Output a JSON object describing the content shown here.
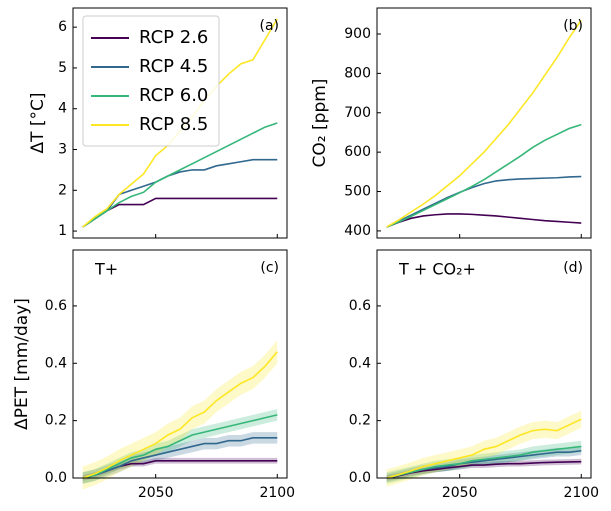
{
  "chart_data": [
    {
      "type": "line",
      "annotation": "(a)",
      "ylabel": "ΔT [°C]",
      "legend": "upper left",
      "x": [
        2020,
        2025,
        2030,
        2035,
        2040,
        2045,
        2050,
        2055,
        2060,
        2065,
        2070,
        2075,
        2080,
        2085,
        2090,
        2095,
        2100
      ],
      "xlim": [
        2016,
        2104
      ],
      "xticks": [
        2050,
        2100
      ],
      "xtick_labels": false,
      "ylim": [
        0.83,
        6.47
      ],
      "yticks": [
        1,
        2,
        3,
        4,
        5,
        6
      ],
      "series": [
        {
          "name": "RCP 2.6",
          "color": "#440154",
          "values": [
            1.1,
            1.3,
            1.5,
            1.65,
            1.65,
            1.65,
            1.8,
            1.8,
            1.8,
            1.8,
            1.8,
            1.8,
            1.8,
            1.8,
            1.8,
            1.8,
            1.8
          ]
        },
        {
          "name": "RCP 4.5",
          "color": "#31688e",
          "values": [
            1.1,
            1.3,
            1.5,
            1.9,
            2.0,
            2.1,
            2.2,
            2.35,
            2.45,
            2.5,
            2.5,
            2.6,
            2.65,
            2.7,
            2.75,
            2.75,
            2.75
          ]
        },
        {
          "name": "RCP 6.0",
          "color": "#35b779",
          "values": [
            1.1,
            1.3,
            1.5,
            1.7,
            1.85,
            1.95,
            2.2,
            2.35,
            2.5,
            2.65,
            2.8,
            2.95,
            3.1,
            3.25,
            3.4,
            3.55,
            3.65
          ]
        },
        {
          "name": "RCP 8.5",
          "color": "#fde725",
          "values": [
            1.1,
            1.35,
            1.55,
            1.9,
            2.15,
            2.4,
            2.85,
            3.1,
            3.45,
            3.8,
            4.2,
            4.55,
            4.85,
            5.1,
            5.2,
            5.7,
            6.2
          ]
        }
      ]
    },
    {
      "type": "line",
      "annotation": "(b)",
      "ylabel": "CO₂ [ppm]",
      "x": [
        2020,
        2025,
        2030,
        2035,
        2040,
        2045,
        2050,
        2055,
        2060,
        2065,
        2070,
        2075,
        2080,
        2085,
        2090,
        2095,
        2100
      ],
      "xlim": [
        2016,
        2104
      ],
      "xticks": [
        2050,
        2100
      ],
      "xtick_labels": false,
      "ylim": [
        382,
        966
      ],
      "yticks": [
        400,
        500,
        600,
        700,
        800,
        900
      ],
      "series": [
        {
          "color": "#440154",
          "values": [
            410,
            422,
            432,
            438,
            441,
            443,
            443,
            442,
            440,
            438,
            435,
            432,
            429,
            426,
            424,
            422,
            420
          ]
        },
        {
          "color": "#31688e",
          "values": [
            410,
            425,
            440,
            455,
            470,
            485,
            498,
            510,
            520,
            527,
            530,
            532,
            533,
            534,
            535,
            537,
            538
          ]
        },
        {
          "color": "#35b779",
          "values": [
            410,
            423,
            437,
            452,
            467,
            482,
            497,
            513,
            530,
            550,
            570,
            590,
            612,
            630,
            645,
            660,
            670
          ]
        },
        {
          "color": "#fde725",
          "values": [
            410,
            428,
            448,
            468,
            490,
            515,
            540,
            570,
            600,
            635,
            670,
            710,
            750,
            795,
            840,
            890,
            935
          ]
        }
      ]
    },
    {
      "type": "line",
      "annotation": "(c)",
      "title": "T+",
      "ylabel": "ΔPET [mm/day]",
      "x": [
        2020,
        2025,
        2030,
        2035,
        2040,
        2045,
        2050,
        2055,
        2060,
        2065,
        2070,
        2075,
        2080,
        2085,
        2090,
        2095,
        2100
      ],
      "xlim": [
        2016,
        2104
      ],
      "xticks": [
        2050,
        2100
      ],
      "ylim": [
        0,
        0.795
      ],
      "yticks": [
        {
          "value": 0,
          "label": "0.0"
        },
        0.2,
        0.4,
        0.6
      ],
      "series": [
        {
          "color": "#440154",
          "band": 0.01,
          "values": [
            0,
            0.01,
            0.025,
            0.04,
            0.05,
            0.05,
            0.06,
            0.06,
            0.06,
            0.06,
            0.06,
            0.06,
            0.06,
            0.06,
            0.06,
            0.06,
            0.06
          ]
        },
        {
          "color": "#31688e",
          "band": 0.02,
          "values": [
            0,
            0.01,
            0.025,
            0.04,
            0.06,
            0.07,
            0.08,
            0.09,
            0.1,
            0.11,
            0.12,
            0.12,
            0.13,
            0.13,
            0.14,
            0.14,
            0.14
          ]
        },
        {
          "color": "#35b779",
          "band": 0.02,
          "values": [
            0,
            0.01,
            0.03,
            0.05,
            0.07,
            0.08,
            0.1,
            0.11,
            0.13,
            0.15,
            0.16,
            0.17,
            0.18,
            0.19,
            0.2,
            0.21,
            0.22
          ]
        },
        {
          "color": "#fde725",
          "band": 0.04,
          "values": [
            0,
            0.015,
            0.035,
            0.06,
            0.08,
            0.1,
            0.12,
            0.15,
            0.17,
            0.21,
            0.23,
            0.27,
            0.3,
            0.33,
            0.35,
            0.39,
            0.44
          ]
        }
      ]
    },
    {
      "type": "line",
      "annotation": "(d)",
      "title": "T + CO₂+",
      "x": [
        2020,
        2025,
        2030,
        2035,
        2040,
        2045,
        2050,
        2055,
        2060,
        2065,
        2070,
        2075,
        2080,
        2085,
        2090,
        2095,
        2100
      ],
      "xlim": [
        2016,
        2104
      ],
      "xticks": [
        2050,
        2100
      ],
      "ylim": [
        0,
        0.795
      ],
      "yticks": [
        {
          "value": 0,
          "label": "0.0"
        },
        0.2,
        0.4,
        0.6
      ],
      "series": [
        {
          "color": "#440154",
          "band": 0.01,
          "values": [
            0,
            0.008,
            0.018,
            0.025,
            0.03,
            0.035,
            0.04,
            0.045,
            0.045,
            0.048,
            0.05,
            0.05,
            0.052,
            0.054,
            0.055,
            0.056,
            0.057
          ]
        },
        {
          "color": "#31688e",
          "band": 0.015,
          "values": [
            0,
            0.01,
            0.02,
            0.03,
            0.035,
            0.04,
            0.05,
            0.055,
            0.06,
            0.065,
            0.07,
            0.075,
            0.08,
            0.085,
            0.09,
            0.09,
            0.095
          ]
        },
        {
          "color": "#35b779",
          "band": 0.02,
          "values": [
            0,
            0.01,
            0.02,
            0.03,
            0.04,
            0.045,
            0.05,
            0.06,
            0.065,
            0.07,
            0.075,
            0.08,
            0.09,
            0.095,
            0.1,
            0.105,
            0.11
          ]
        },
        {
          "color": "#fde725",
          "band": 0.03,
          "values": [
            0,
            0.012,
            0.025,
            0.04,
            0.05,
            0.06,
            0.07,
            0.08,
            0.1,
            0.11,
            0.13,
            0.15,
            0.165,
            0.17,
            0.165,
            0.185,
            0.205
          ]
        }
      ]
    }
  ]
}
